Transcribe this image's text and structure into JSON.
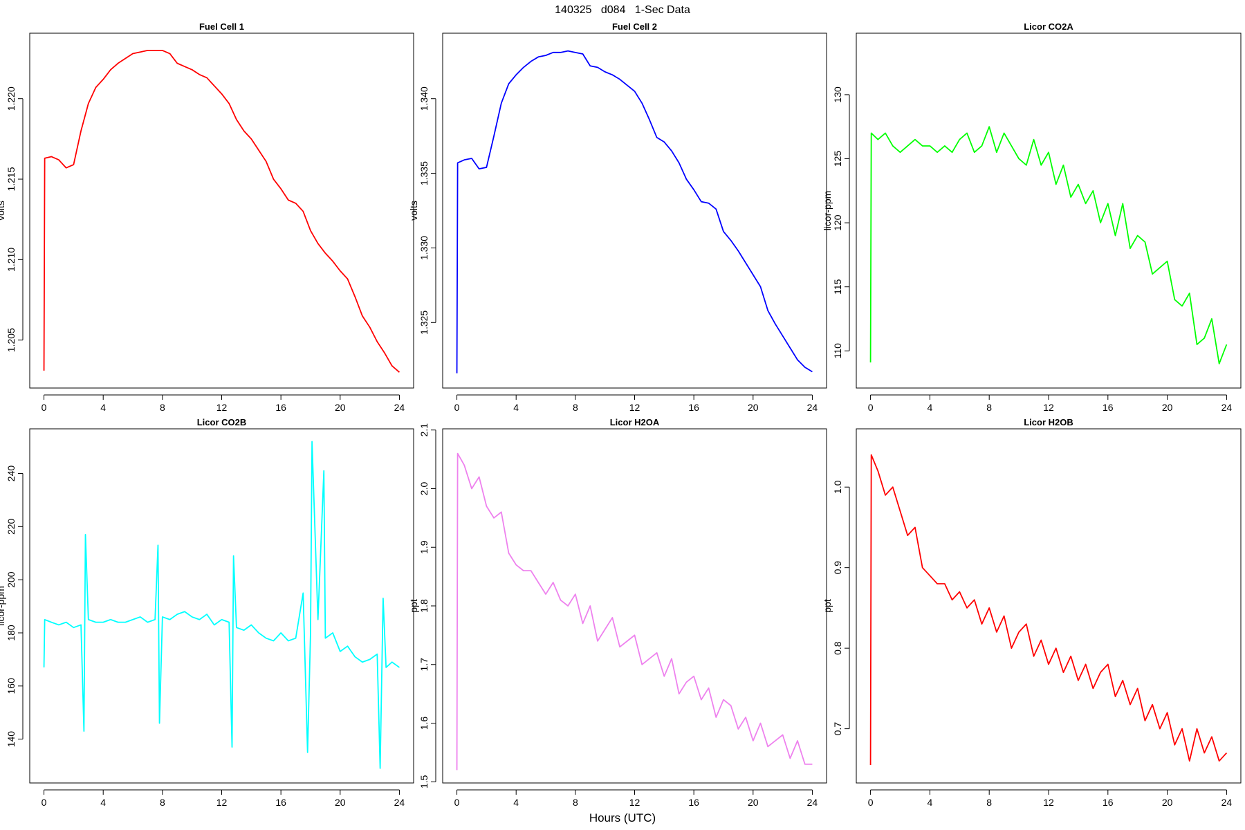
{
  "title": "140325   d084   1-Sec Data",
  "xlabel": "Hours (UTC)",
  "chart_data": [
    {
      "type": "line",
      "title": "Fuel Cell 1",
      "ylabel": "volts",
      "color": "#ff0000",
      "x": [
        0,
        0.05,
        0.5,
        1,
        1.5,
        2,
        2.5,
        3,
        3.5,
        4,
        4.5,
        5,
        5.5,
        6,
        6.5,
        7,
        7.5,
        8,
        8.5,
        9,
        9.5,
        10,
        10.5,
        11,
        11.5,
        12,
        12.5,
        13,
        13.5,
        14,
        14.5,
        15,
        15.5,
        16,
        16.5,
        17,
        17.5,
        18,
        18.5,
        19,
        19.5,
        20,
        20.5,
        21,
        21.5,
        22,
        22.5,
        23,
        23.5,
        24
      ],
      "values": [
        1.2031,
        1.2163,
        1.2164,
        1.2162,
        1.2157,
        1.2159,
        1.218,
        1.2197,
        1.2207,
        1.2212,
        1.2218,
        1.2222,
        1.2225,
        1.2228,
        1.2229,
        1.223,
        1.223,
        1.223,
        1.2228,
        1.2222,
        1.222,
        1.2218,
        1.2215,
        1.2213,
        1.2208,
        1.2203,
        1.2197,
        1.2187,
        1.218,
        1.2175,
        1.2168,
        1.2161,
        1.215,
        1.2144,
        1.2137,
        1.2135,
        1.213,
        1.2118,
        1.211,
        1.2104,
        1.2099,
        1.2093,
        1.2088,
        1.2077,
        1.2065,
        1.2058,
        1.2049,
        1.2042,
        1.2034,
        1.203
      ],
      "xlim": [
        -0.96,
        24.96
      ],
      "xticks": [
        0,
        4,
        8,
        12,
        16,
        20,
        24
      ],
      "ylim": [
        1.20202,
        1.22407
      ],
      "yticks": [
        1.205,
        {
          "value": 1.21,
          "label": "1.210"
        },
        1.215,
        {
          "value": 1.22,
          "label": "1.220"
        }
      ]
    },
    {
      "type": "line",
      "title": "Fuel Cell 2",
      "ylabel": "volts",
      "color": "#0000ff",
      "x": [
        0,
        0.05,
        0.5,
        1,
        1.5,
        2,
        2.5,
        3,
        3.5,
        4,
        4.5,
        5,
        5.5,
        6,
        6.5,
        7,
        7.5,
        8,
        8.5,
        9,
        9.5,
        10,
        10.5,
        11,
        11.5,
        12,
        12.5,
        13,
        13.5,
        14,
        14.5,
        15,
        15.5,
        16,
        16.5,
        17,
        17.5,
        18,
        18.5,
        19,
        19.5,
        20,
        20.5,
        21,
        21.5,
        22,
        22.5,
        23,
        23.5,
        24
      ],
      "values": [
        1.3216,
        1.3357,
        1.3359,
        1.336,
        1.3353,
        1.3354,
        1.3375,
        1.3397,
        1.341,
        1.3416,
        1.3421,
        1.3425,
        1.3428,
        1.3429,
        1.3431,
        1.3431,
        1.3432,
        1.3431,
        1.343,
        1.3422,
        1.3421,
        1.3418,
        1.3416,
        1.3413,
        1.3409,
        1.3405,
        1.3397,
        1.3386,
        1.3374,
        1.3371,
        1.3365,
        1.3357,
        1.3346,
        1.3339,
        1.3331,
        1.333,
        1.3326,
        1.3311,
        1.3305,
        1.3298,
        1.329,
        1.3282,
        1.3274,
        1.3258,
        1.3249,
        1.3241,
        1.3233,
        1.3225,
        1.322,
        1.3217
      ],
      "xlim": [
        -0.96,
        24.96
      ],
      "xticks": [
        0,
        4,
        8,
        12,
        16,
        20,
        24
      ],
      "ylim": [
        1.32061,
        1.34439
      ],
      "yticks": [
        1.325,
        {
          "value": 1.33,
          "label": "1.330"
        },
        1.335,
        {
          "value": 1.34,
          "label": "1.340"
        }
      ]
    },
    {
      "type": "line",
      "title": "Licor CO2A",
      "ylabel": "licor-ppm",
      "color": "#00ff00",
      "x": [
        0,
        0.05,
        0.5,
        1,
        1.5,
        2,
        2.5,
        3,
        3.5,
        4,
        4.5,
        5,
        5.5,
        6,
        6.5,
        7,
        7.5,
        8,
        8.5,
        9,
        9.5,
        10,
        10.5,
        11,
        11.5,
        12,
        12.5,
        13,
        13.5,
        14,
        14.5,
        15,
        15.5,
        16,
        16.5,
        17,
        17.5,
        18,
        18.5,
        19,
        19.5,
        20,
        20.5,
        21,
        21.5,
        22,
        22.5,
        23,
        23.5,
        24
      ],
      "values": [
        109.1,
        127,
        126.5,
        127,
        126,
        125.5,
        126,
        126.5,
        126,
        126,
        125.5,
        126,
        125.5,
        126.5,
        127,
        125.5,
        126,
        127.5,
        125.5,
        127,
        126,
        125,
        124.5,
        126.5,
        124.5,
        125.5,
        123,
        124.5,
        122,
        123,
        121.5,
        122.5,
        120,
        121.5,
        119,
        121.5,
        118,
        119,
        118.5,
        116,
        116.5,
        117,
        114,
        113.5,
        114.5,
        110.5,
        111,
        112.5,
        109,
        110.5
      ],
      "xlim": [
        -0.96,
        24.96
      ],
      "xticks": [
        0,
        4,
        8,
        12,
        16,
        20,
        24
      ],
      "ylim": [
        107.1,
        134.8
      ],
      "yticks": [
        110,
        115,
        120,
        125,
        130
      ]
    },
    {
      "type": "line",
      "title": "Licor CO2B",
      "ylabel": "licor-ppm",
      "color": "#00ffff",
      "x": [
        0,
        0.05,
        0.5,
        1,
        1.5,
        2,
        2.5,
        2.7,
        2.8,
        3,
        3.5,
        4,
        4.5,
        5,
        5.5,
        6,
        6.5,
        7,
        7.5,
        7.7,
        7.8,
        8,
        8.5,
        9,
        9.5,
        10,
        10.5,
        11,
        11.5,
        12,
        12.5,
        12.7,
        12.8,
        13,
        13.5,
        14,
        14.5,
        15,
        15.5,
        16,
        16.5,
        17,
        17.5,
        17.8,
        18,
        18.1,
        18.5,
        18.9,
        19,
        19.5,
        20,
        20.5,
        21,
        21.5,
        22,
        22.5,
        22.7,
        22.9,
        23.1,
        23.5,
        24
      ],
      "values": [
        167,
        185,
        184,
        183,
        184,
        182,
        183,
        143,
        217,
        185,
        184,
        184,
        185,
        184,
        184,
        185,
        186,
        184,
        185,
        213,
        146,
        186,
        185,
        187,
        188,
        186,
        185,
        187,
        183,
        185,
        184,
        137,
        209,
        182,
        181,
        183,
        180,
        178,
        177,
        180,
        177,
        178,
        195,
        135,
        180,
        252,
        185,
        241,
        178,
        180,
        173,
        175,
        171,
        169,
        170,
        172,
        129,
        193,
        167,
        169,
        167
      ],
      "xlim": [
        -0.96,
        24.96
      ],
      "xticks": [
        0,
        4,
        8,
        12,
        16,
        20,
        24
      ],
      "ylim": [
        123.5,
        256.8
      ],
      "yticks": [
        140,
        160,
        180,
        200,
        220,
        240
      ]
    },
    {
      "type": "line",
      "title": "Licor H2OA",
      "ylabel": "ppt",
      "color": "#ee82ee",
      "x": [
        0,
        0.05,
        0.5,
        1,
        1.5,
        2,
        2.5,
        3,
        3.5,
        4,
        4.5,
        5,
        5.5,
        6,
        6.5,
        7,
        7.5,
        8,
        8.5,
        9,
        9.5,
        10,
        10.5,
        11,
        11.5,
        12,
        12.5,
        13,
        13.5,
        14,
        14.5,
        15,
        15.5,
        16,
        16.5,
        17,
        17.5,
        18,
        18.5,
        19,
        19.5,
        20,
        20.5,
        21,
        21.5,
        22,
        22.5,
        23,
        23.5,
        24
      ],
      "values": [
        1.52,
        2.06,
        2.04,
        2.0,
        2.02,
        1.97,
        1.95,
        1.96,
        1.89,
        1.87,
        1.86,
        1.86,
        1.84,
        1.82,
        1.84,
        1.81,
        1.8,
        1.82,
        1.77,
        1.8,
        1.74,
        1.76,
        1.78,
        1.73,
        1.74,
        1.75,
        1.7,
        1.71,
        1.72,
        1.68,
        1.71,
        1.65,
        1.67,
        1.68,
        1.64,
        1.66,
        1.61,
        1.64,
        1.63,
        1.59,
        1.61,
        1.57,
        1.6,
        1.56,
        1.57,
        1.58,
        1.54,
        1.57,
        1.53,
        1.53
      ],
      "xlim": [
        -0.96,
        24.96
      ],
      "xticks": [
        0,
        4,
        8,
        12,
        16,
        20,
        24
      ],
      "ylim": [
        1.498,
        2.102
      ],
      "yticks": [
        1.5,
        1.6,
        1.7,
        1.8,
        1.9,
        {
          "value": 2,
          "label": "2.0"
        },
        2.1
      ]
    },
    {
      "type": "line",
      "title": "Licor H2OB",
      "ylabel": "ppt",
      "color": "#ff0000",
      "x": [
        0,
        0.05,
        0.5,
        1,
        1.5,
        2,
        2.5,
        3,
        3.5,
        4,
        4.5,
        5,
        5.5,
        6,
        6.5,
        7,
        7.5,
        8,
        8.5,
        9,
        9.5,
        10,
        10.5,
        11,
        11.5,
        12,
        12.5,
        13,
        13.5,
        14,
        14.5,
        15,
        15.5,
        16,
        16.5,
        17,
        17.5,
        18,
        18.5,
        19,
        19.5,
        20,
        20.5,
        21,
        21.5,
        22,
        22.5,
        23,
        23.5,
        24
      ],
      "values": [
        0.655,
        1.04,
        1.02,
        0.99,
        1.0,
        0.97,
        0.94,
        0.95,
        0.9,
        0.89,
        0.88,
        0.88,
        0.86,
        0.87,
        0.85,
        0.86,
        0.83,
        0.85,
        0.82,
        0.84,
        0.8,
        0.82,
        0.83,
        0.79,
        0.81,
        0.78,
        0.8,
        0.77,
        0.79,
        0.76,
        0.78,
        0.75,
        0.77,
        0.78,
        0.74,
        0.76,
        0.73,
        0.75,
        0.71,
        0.73,
        0.7,
        0.72,
        0.68,
        0.7,
        0.66,
        0.7,
        0.67,
        0.69,
        0.66,
        0.67
      ],
      "xlim": [
        -0.96,
        24.96
      ],
      "xticks": [
        0,
        4,
        8,
        12,
        16,
        20,
        24
      ],
      "ylim": [
        0.6327,
        1.0723
      ],
      "yticks": [
        0.7,
        0.8,
        0.9,
        {
          "value": 1,
          "label": "1.0"
        }
      ]
    }
  ]
}
